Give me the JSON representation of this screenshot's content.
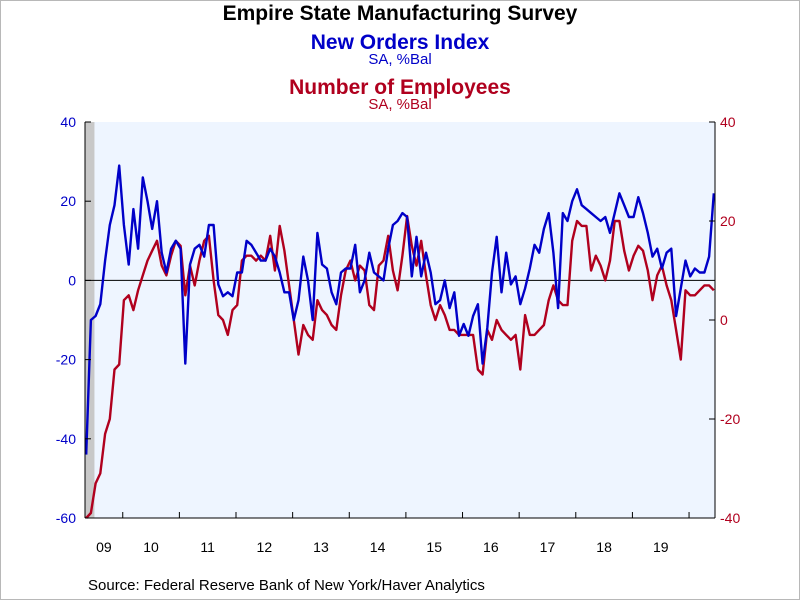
{
  "title": "Empire State Manufacturing Survey",
  "subtitle1": "New Orders Index",
  "subtitle1_unit": "SA, %Bal",
  "subtitle2": "Number of Employees",
  "subtitle2_unit": "SA, %Bal",
  "source": "Source:  Federal Reserve Bank of New York/Haver Analytics",
  "colors": {
    "new_orders": "#0000c8",
    "employees": "#b0001e",
    "plot_bg": "#eef5ff",
    "recession": "#c8c8c8"
  },
  "chart_data": {
    "type": "line",
    "x_start": "2009-05",
    "frequency": "monthly",
    "x_tick_labels": [
      "09",
      "10",
      "11",
      "12",
      "13",
      "14",
      "15",
      "16",
      "17",
      "18",
      "19"
    ],
    "recession_shading": [
      "2009-05",
      "2009-06"
    ],
    "grid": false,
    "left_axis": {
      "ylim": [
        -60,
        40
      ],
      "ticks": [
        "40",
        "20",
        "0",
        "-20",
        "-40",
        "-60"
      ]
    },
    "right_axis": {
      "ylim": [
        -40,
        40
      ],
      "ticks": [
        "40",
        "20",
        "0",
        "-20",
        "-40"
      ]
    },
    "series": [
      {
        "name": "New Orders Index",
        "axis": "left",
        "values": [
          -44,
          -10,
          -9,
          -6,
          5,
          14,
          19,
          29,
          14,
          4,
          18,
          8,
          26,
          20,
          13,
          20,
          7,
          2,
          8,
          10,
          8,
          -21,
          4,
          8,
          9,
          6,
          14,
          14,
          -1,
          -4,
          -3,
          -4,
          2,
          2,
          10,
          9,
          7,
          5,
          5,
          8,
          6,
          2,
          -3,
          -3,
          -10,
          -5,
          6,
          0,
          -10,
          12,
          4,
          3,
          -3,
          -6,
          2,
          3,
          3,
          9,
          -3,
          0,
          7,
          2,
          1,
          0,
          8,
          14,
          15,
          17,
          16,
          1,
          11,
          1,
          7,
          2,
          -6,
          -5,
          0,
          -7,
          -3,
          -14,
          -11,
          -14,
          -9,
          -6,
          -21,
          -12,
          2,
          11,
          -3,
          7,
          -1,
          1,
          -6,
          -2,
          3,
          9,
          7,
          13,
          17,
          7,
          -7,
          17,
          15,
          20,
          23,
          19,
          18,
          17,
          16,
          15,
          16,
          12,
          17,
          22,
          19,
          16,
          16,
          21,
          17,
          12,
          6,
          8,
          3,
          7,
          8,
          -9,
          -2,
          5,
          1,
          3,
          2,
          2,
          6,
          22
        ]
      },
      {
        "name": "Number of Employees",
        "axis": "right",
        "values": [
          -40,
          -39,
          -33,
          -31,
          -23,
          -20,
          -10,
          -9,
          4,
          5,
          2,
          6,
          9,
          12,
          14,
          16,
          11,
          9,
          13,
          16,
          15,
          5,
          11,
          7,
          12,
          16,
          17,
          8,
          1,
          0,
          -3,
          2,
          3,
          12,
          13,
          13,
          12,
          13,
          12,
          17,
          10,
          19,
          14,
          7,
          0,
          -7,
          -1,
          -3,
          -4,
          4,
          2,
          1,
          -1,
          -2,
          5,
          10,
          12,
          8,
          11,
          10,
          3,
          2,
          11,
          12,
          17,
          10,
          6,
          13,
          21,
          15,
          11,
          16,
          9,
          3,
          0,
          3,
          1,
          -2,
          -2,
          -3,
          -3,
          -3,
          -3,
          -10,
          -11,
          -2,
          -4,
          0,
          -2,
          -3,
          -4,
          -3,
          -10,
          1,
          -3,
          -3,
          -2,
          -1,
          4,
          7,
          4,
          3,
          3,
          16,
          20,
          19,
          19,
          10,
          13,
          11,
          8,
          12,
          20,
          20,
          14,
          10,
          13,
          15,
          14,
          10,
          4,
          9,
          11,
          7,
          4,
          -2,
          -8,
          6,
          5,
          5,
          6,
          7,
          7,
          6
        ]
      }
    ]
  }
}
